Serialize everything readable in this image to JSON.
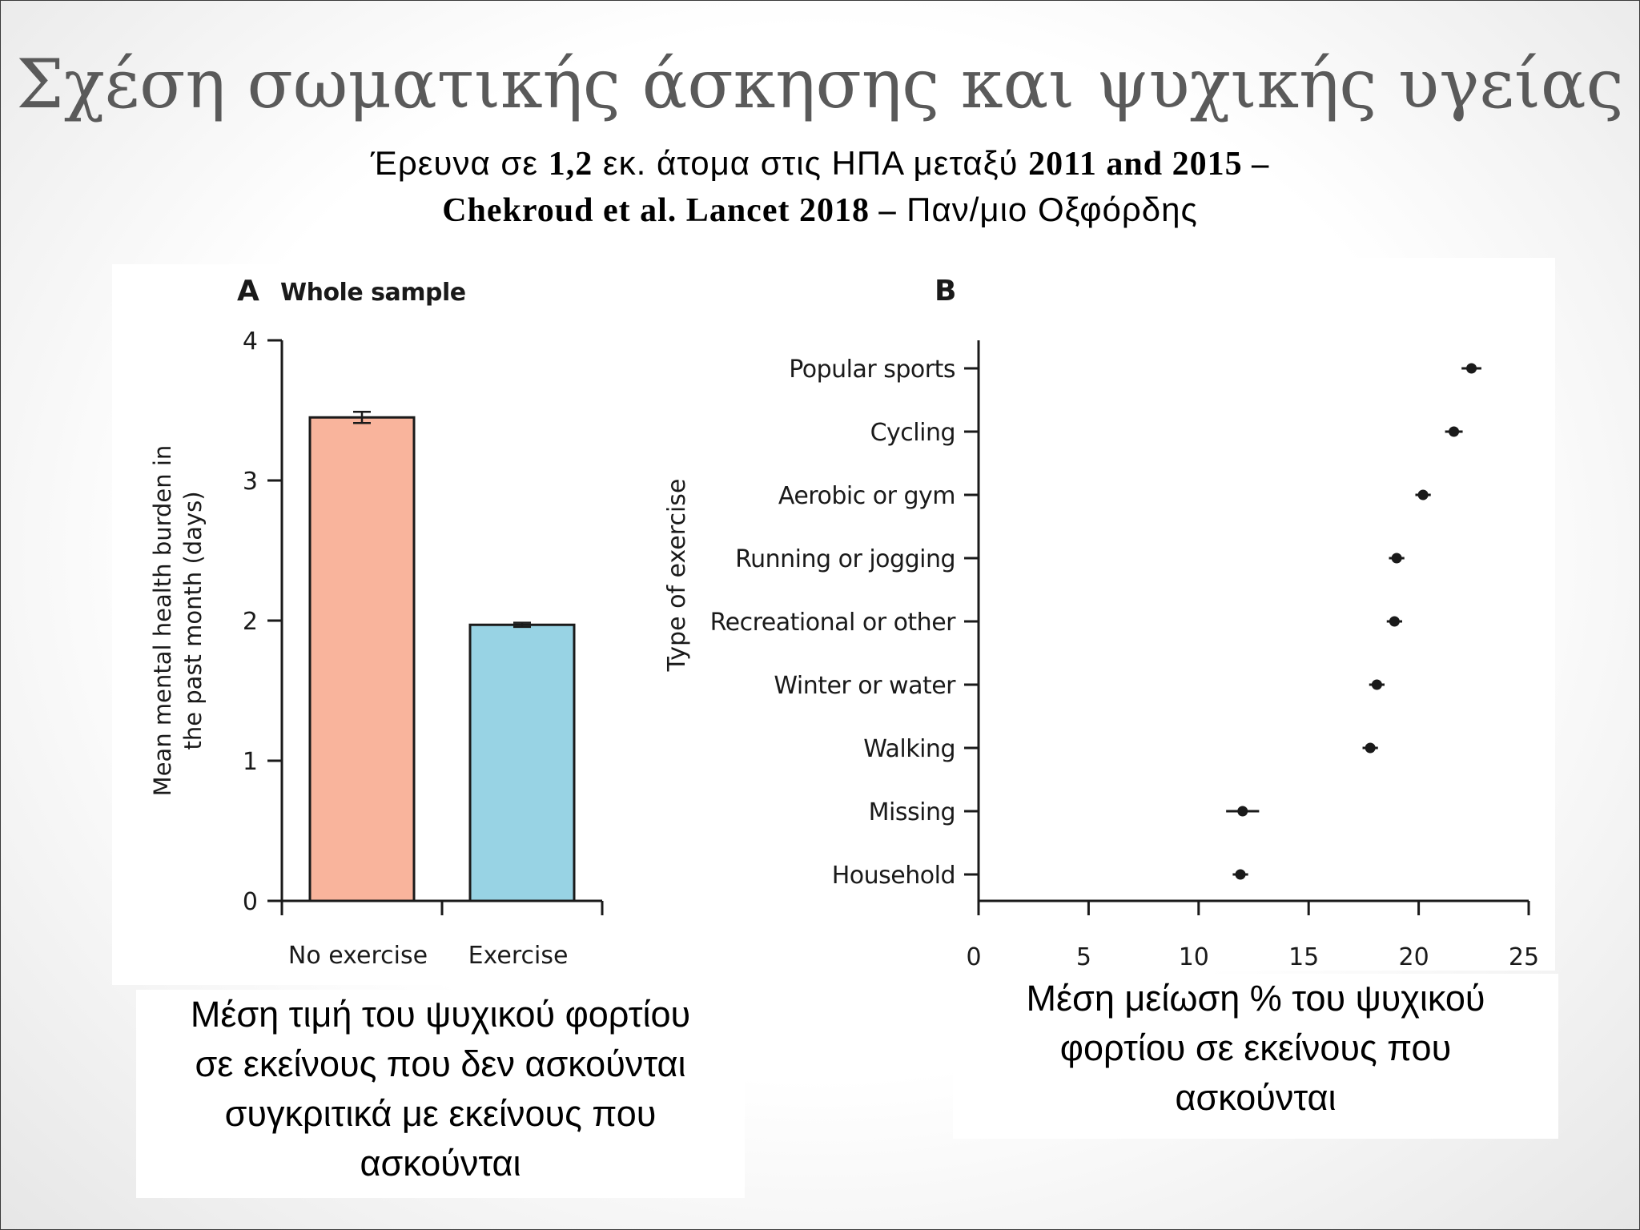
{
  "slide": {
    "title": "Σχέση σωματικής άσκησης και ψυχικής υγείας",
    "subtitle_line1": [
      {
        "text": "Έρευνα σε ",
        "bold": false
      },
      {
        "text": "1,2",
        "bold": true
      },
      {
        "text": " εκ. άτομα στις ΗΠΑ μεταξύ ",
        "bold": false
      },
      {
        "text": "2011 and 2015 –",
        "bold": true
      }
    ],
    "subtitle_line2": [
      {
        "text": "Chekroud et al. Lancet 2018 –",
        "bold": true
      },
      {
        "text": " Παν/μιο Οξφόρδης",
        "bold": false
      }
    ],
    "caption_left": [
      "Μέση τιμή του ψυχικού φορτίου",
      "σε εκείνους που δεν ασκούνται",
      "συγκριτικά με εκείνους που",
      "ασκούνται"
    ],
    "caption_right": [
      "Μέση μείωση % του ψυχικού",
      "φορτίου σε εκείνους που",
      "ασκούνται"
    ]
  },
  "chart_data": [
    {
      "type": "bar",
      "panel_label": "A",
      "title": "Whole sample",
      "categories": [
        "No exercise",
        "Exercise"
      ],
      "values": [
        3.45,
        1.97
      ],
      "error": [
        0.04,
        0.015
      ],
      "colors": [
        "#F9B49C",
        "#98D3E4"
      ],
      "ylabel": [
        "Mean mental health burden in",
        "the past month (days)"
      ],
      "xlabel": "",
      "ylim": [
        0,
        4
      ],
      "yticks": [
        0,
        1,
        2,
        3,
        4
      ],
      "grid": false
    },
    {
      "type": "scatter",
      "panel_label": "B",
      "title": "",
      "ylabel": "Type of exercise",
      "xlabel": "",
      "categories": [
        "Popular sports",
        "Cycling",
        "Aerobic or gym",
        "Running or jogging",
        "Recreational or other",
        "Winter or water",
        "Walking",
        "Missing",
        "Household"
      ],
      "values": [
        22.4,
        21.6,
        20.2,
        19.0,
        18.9,
        18.1,
        17.8,
        12.0,
        11.9
      ],
      "error": [
        0.45,
        0.4,
        0.35,
        0.35,
        0.35,
        0.35,
        0.35,
        0.75,
        0.35
      ],
      "xlim": [
        0,
        25
      ],
      "xticks": [
        0,
        5,
        10,
        15,
        20,
        25
      ],
      "grid": false
    }
  ]
}
